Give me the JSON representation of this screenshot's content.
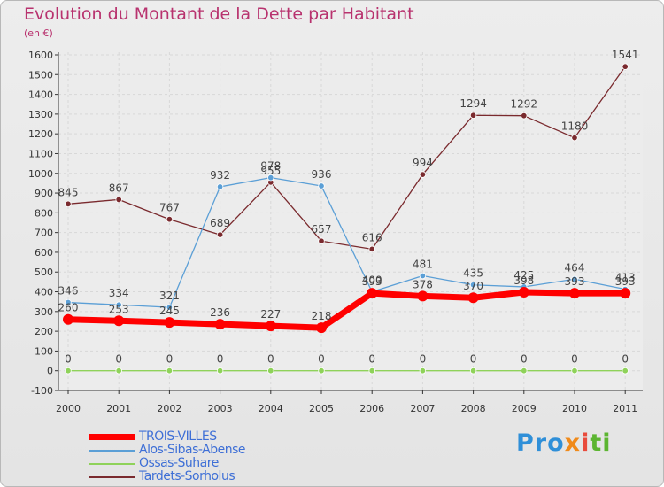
{
  "header": {
    "title": "Evolution du Montant de la Dette par Habitant",
    "unit": "(en €)"
  },
  "logo": {
    "text": "Proxiti",
    "parts": [
      "Pro",
      "x",
      "i",
      "ti"
    ]
  },
  "chart_data": {
    "type": "line",
    "title": "Evolution du Montant de la Dette par Habitant",
    "ylabel": "(en €)",
    "xlabel": "",
    "ylim": [
      -100,
      1600
    ],
    "yticks": [
      -100,
      0,
      100,
      200,
      300,
      400,
      500,
      600,
      700,
      800,
      900,
      1000,
      1100,
      1200,
      1300,
      1400,
      1500,
      1600
    ],
    "x": [
      "2000",
      "2001",
      "2002",
      "2003",
      "2004",
      "2005",
      "2006",
      "2007",
      "2008",
      "2009",
      "2010",
      "2011"
    ],
    "grid": true,
    "legend_position": "bottom-left",
    "series": [
      {
        "name": "TROIS-VILLES",
        "color": "#ff0000",
        "values": [
          260,
          253,
          245,
          236,
          227,
          218,
          393,
          378,
          370,
          398,
          393,
          393
        ]
      },
      {
        "name": "Alos-Sibas-Abense",
        "color": "#5b9fd6",
        "values": [
          346,
          334,
          321,
          932,
          978,
          936,
          400,
          481,
          435,
          425,
          464,
          413
        ]
      },
      {
        "name": "Ossas-Suhare",
        "color": "#8fd25a",
        "values": [
          0,
          0,
          0,
          0,
          0,
          0,
          0,
          0,
          0,
          0,
          0,
          0
        ]
      },
      {
        "name": "Tardets-Sorholus",
        "color": "#7a2a2e",
        "values": [
          845,
          867,
          767,
          689,
          955,
          657,
          616,
          994,
          1294,
          1292,
          1180,
          1541
        ]
      }
    ]
  }
}
